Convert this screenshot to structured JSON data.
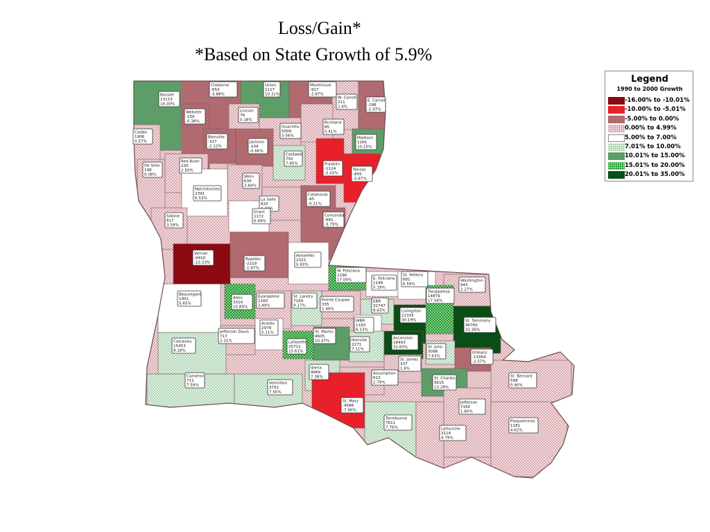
{
  "title": {
    "line1": "Loss/Gain*",
    "line2": "*Based on State Growth of 5.9%"
  },
  "legend": {
    "title": "Legend",
    "subtitle": "1990 to 2000 Growth",
    "items": [
      {
        "label": "-16.00% to -10.01%",
        "color": "#8b0a12",
        "pattern": "solid"
      },
      {
        "label": "-10.00% to -5.01%",
        "color": "#e8202a",
        "pattern": "solid"
      },
      {
        "label": "-5.00% to 0.00%",
        "color": "#b06a70",
        "pattern": "solid"
      },
      {
        "label": "0.00% to 4.99%",
        "color": "#e2b8be",
        "pattern": "dots"
      },
      {
        "label": "5.00% to 7.00%",
        "color": "#ffffff",
        "pattern": "solid"
      },
      {
        "label": "7.01% to 10.00%",
        "color": "#c6e2c8",
        "pattern": "dots"
      },
      {
        "label": "10.01% to 15.00%",
        "color": "#5d9d68",
        "pattern": "solid"
      },
      {
        "label": "15.01% to 20.00%",
        "color": "#1f9a2c",
        "pattern": "dots"
      },
      {
        "label": "20.01% to 35.00%",
        "color": "#0b4d16",
        "pattern": "solid"
      }
    ]
  },
  "parishes": [
    {
      "name": "Bossier",
      "l2": "13113",
      "l3": "14.30%",
      "cls": 6
    },
    {
      "name": "Claiborne",
      "l2": "-653",
      "l3": "-3.88%",
      "cls": 2
    },
    {
      "name": "Union",
      "l2": "1117",
      "l3": "10.31%",
      "cls": 6
    },
    {
      "name": "Morehouse",
      "l2": "-917",
      "l3": "-2.87%",
      "cls": 2
    },
    {
      "name": "W. Carroll",
      "l2": "311",
      "l3": "2.6%",
      "cls": 3
    },
    {
      "name": "E. Carroll",
      "l2": "-188",
      "l3": "-1.97%",
      "cls": 2
    },
    {
      "name": "Webster",
      "l2": "-156",
      "l3": "-0.38%",
      "cls": 2
    },
    {
      "name": "Lincoln",
      "l2": "76",
      "l3": "0.18%",
      "cls": 3
    },
    {
      "name": "Ouachita",
      "l2": "5009",
      "l3": "3.56%",
      "cls": 3
    },
    {
      "name": "Richland",
      "l2": "85",
      "l3": "0.41%",
      "cls": 3
    },
    {
      "name": "Caddo",
      "l2": "1906",
      "l3": "0.57%",
      "cls": 3
    },
    {
      "name": "Bienville",
      "l2": "-327",
      "l3": "-2.12%",
      "cls": 2
    },
    {
      "name": "Jackson",
      "l2": "-104",
      "l3": "-0.66%",
      "cls": 2
    },
    {
      "name": "Madison",
      "l2": "1265",
      "l3": "10.15%",
      "cls": 6
    },
    {
      "name": "Caldwell",
      "l2": "750",
      "l3": "7.65%",
      "cls": 5
    },
    {
      "name": "Franklin",
      "l2": "-1124",
      "l3": "-5.03%",
      "cls": 1
    },
    {
      "name": "Tensas",
      "l2": "-855",
      "l3": "-5.87%",
      "cls": 1
    },
    {
      "name": "De Soto",
      "l2": "198",
      "l3": "0.08%",
      "cls": 3
    },
    {
      "name": "Red River",
      "l2": "235",
      "l3": "2.50%",
      "cls": 3
    },
    {
      "name": "Winn",
      "l2": "630",
      "l3": "3.84%",
      "cls": 3
    },
    {
      "name": "Natchitoches",
      "l2": "2391",
      "l3": "6.53%",
      "cls": 4
    },
    {
      "name": "La Salle",
      "l2": "620",
      "l3": "4.34%",
      "cls": 3
    },
    {
      "name": "Catahoula",
      "l2": "-45",
      "l3": "-0.11%",
      "cls": 2
    },
    {
      "name": "Sabine",
      "l2": "817",
      "l3": "3.59%",
      "cls": 3
    },
    {
      "name": "Grant",
      "l2": "1172",
      "l3": "6.69%",
      "cls": 4
    },
    {
      "name": "Concordia",
      "l2": "-681",
      "l3": "-3.79%",
      "cls": 2
    },
    {
      "name": "Vernon",
      "l2": "-9410",
      "l3": "-15.33%",
      "cls": 0
    },
    {
      "name": "Rapides",
      "l2": "-2219",
      "l3": "-1.67%",
      "cls": 2
    },
    {
      "name": "Avoyelles",
      "l2": "2322",
      "l3": "5.93%",
      "cls": 4
    },
    {
      "name": "W. Feliciana",
      "l2": "2196",
      "l3": "17.00%",
      "cls": 7
    },
    {
      "name": "E. Feliciana",
      "l2": "1149",
      "l3": "5.19%",
      "cls": 4
    },
    {
      "name": "St. Helena",
      "l2": "681",
      "l3": "6.59%",
      "cls": 4
    },
    {
      "name": "Washington",
      "l2": "943",
      "l3": "2.27%",
      "cls": 3
    },
    {
      "name": "Beauregard",
      "l2": "1901",
      "l3": "5.65%",
      "cls": 4
    },
    {
      "name": "Allen",
      "l2": "3314",
      "l3": "15.85%",
      "cls": 7
    },
    {
      "name": "Evangeline",
      "l2": "1160",
      "l3": "3.49%",
      "cls": 3
    },
    {
      "name": "St. Landry",
      "l2": "7169",
      "l3": "9.17%",
      "cls": 5
    },
    {
      "name": "Pointe Coupee",
      "l2": "335",
      "l3": "1.49%",
      "cls": 3
    },
    {
      "name": "EBR",
      "l2": "32747",
      "l3": "8.63%",
      "cls": 5
    },
    {
      "name": "Tangipahoa",
      "l2": "14879",
      "l3": "17.56%",
      "cls": 7
    },
    {
      "name": "Livingston",
      "l2": "21335",
      "l3": "30.19%",
      "cls": 8
    },
    {
      "name": "St. Tammany",
      "l2": "46760",
      "l3": "32.36%",
      "cls": 8
    },
    {
      "name": "WBR",
      "l2": "1183",
      "l3": "6.13%",
      "cls": 4
    },
    {
      "name": "Acadia",
      "l2": "2979",
      "l3": "5.11%",
      "cls": 4
    },
    {
      "name": "Jefferson Davis",
      "l2": "717",
      "l3": "2.31%",
      "cls": 3
    },
    {
      "name": "Lafayette",
      "l2": "25711",
      "l3": "15.61%",
      "cls": 7
    },
    {
      "name": "St. Martin",
      "l2": "4605",
      "l3": "10.47%",
      "cls": 6
    },
    {
      "name": "Iberville",
      "l2": "2271",
      "l3": "7.11%",
      "cls": 5
    },
    {
      "name": "Ascension",
      "l2": "18493",
      "l3": "31.65%",
      "cls": 8
    },
    {
      "name": "St. John",
      "l2": "3098",
      "l3": "7.63%",
      "cls": 5
    },
    {
      "name": "Orleans",
      "l2": "-13364",
      "l3": "-2.57%",
      "cls": 2
    },
    {
      "name": "Calcasieu",
      "l2": "15453",
      "l3": "8.18%",
      "cls": 5
    },
    {
      "name": "St. James",
      "l2": "337",
      "l3": "1.6%",
      "cls": 3
    },
    {
      "name": "Iberia",
      "l2": "4969",
      "l3": "7.38%",
      "cls": 5
    },
    {
      "name": "Assumption",
      "l2": "613",
      "l3": "2.79%",
      "cls": 3
    },
    {
      "name": "St. Charles",
      "l2": "5615",
      "l3": "13.28%",
      "cls": 6
    },
    {
      "name": "St. Bernard",
      "l2": "598",
      "l3": "0.90%",
      "cls": 3
    },
    {
      "name": "Cameron",
      "l2": "711",
      "l3": "7.59%",
      "cls": 5
    },
    {
      "name": "Vermilion",
      "l2": "3752",
      "l3": "7.50%",
      "cls": 5
    },
    {
      "name": "St. Mary",
      "l2": "-4586",
      "l3": "-7.90%",
      "cls": 1
    },
    {
      "name": "Jefferson",
      "l2": "7160",
      "l3": "1.60%",
      "cls": 3
    },
    {
      "name": "Terrebonne",
      "l2": "7811",
      "l3": "7.76%",
      "cls": 5
    },
    {
      "name": "Lafourche",
      "l2": "3114",
      "l3": "4.79%",
      "cls": 3
    },
    {
      "name": "Plaquemines",
      "l2": "1181",
      "l3": "4.62%",
      "cls": 3
    }
  ]
}
